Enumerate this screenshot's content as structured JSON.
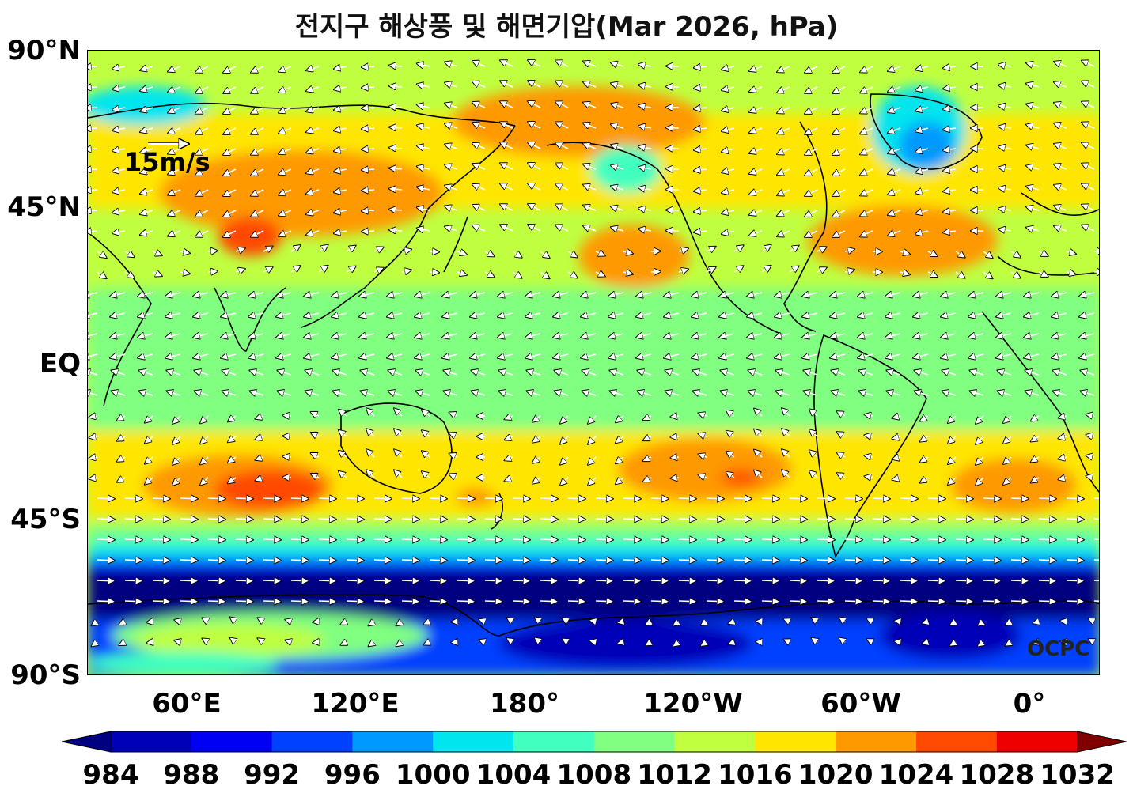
{
  "title": "전지구 해상풍 및 해면기압(Mar 2026, hPa)",
  "lat_labels": [
    "90°N",
    "45°N",
    "EQ",
    "45°S",
    "90°S"
  ],
  "lon_labels": [
    "60°E",
    "120°E",
    "180°",
    "120°W",
    "60°W",
    "0°"
  ],
  "reference_vector": "15m/s",
  "watermark": "OCPC",
  "colorbar": {
    "levels": [
      "984",
      "988",
      "992",
      "996",
      "1000",
      "1004",
      "1008",
      "1012",
      "1016",
      "1020",
      "1024",
      "1028",
      "1032"
    ],
    "colors": [
      "#000080",
      "#0000b8",
      "#0000f5",
      "#0040ff",
      "#0099ff",
      "#00e5ee",
      "#40ffbf",
      "#80ff80",
      "#bfff40",
      "#ffe600",
      "#ff9900",
      "#ff4a00",
      "#ee0000",
      "#800000"
    ]
  },
  "field_colors": {
    "984": "#000080",
    "988": "#0000b8",
    "992": "#0000f5",
    "996": "#0040ff",
    "1000": "#0099ff",
    "1004": "#00e5ee",
    "1008": "#40ffbf",
    "1012": "#80ff80",
    "1016": "#bfff40",
    "1020": "#ffe600",
    "1024": "#ff9900",
    "1028": "#ff4a00",
    "1032": "#ee0000"
  }
}
